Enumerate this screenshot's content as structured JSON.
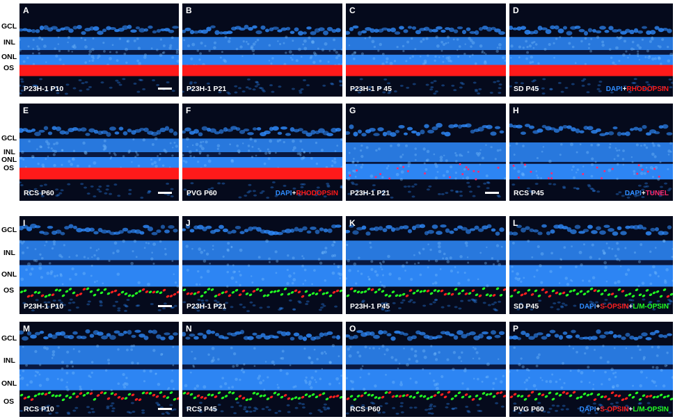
{
  "layer_labels": {
    "top": [
      "GCL",
      "INL",
      "ONL",
      "OS"
    ],
    "row2": [
      "GCL",
      "INL",
      "ONL",
      "OS"
    ],
    "bottom1": [
      "GCL",
      "INL",
      "ONL",
      "OS"
    ],
    "bottom2": [
      "GCL",
      "INL",
      "ONL",
      "OS"
    ]
  },
  "panels": [
    {
      "letter": "A",
      "caption": "P23H-1 P10",
      "type": "rho",
      "scale": true
    },
    {
      "letter": "B",
      "caption": "P23H-1 P21",
      "type": "rho"
    },
    {
      "letter": "C",
      "caption": "P23H-1 P 45",
      "type": "rho"
    },
    {
      "letter": "D",
      "caption": "SD P45",
      "type": "rho",
      "legend": [
        "DAPI",
        "+",
        "RHODOPSIN"
      ]
    },
    {
      "letter": "E",
      "caption": "RCS P60",
      "type": "rho",
      "scale": true
    },
    {
      "letter": "F",
      "caption": "PVG P60",
      "type": "rho",
      "legend": [
        "DAPI",
        "+",
        "RHODOPSIN"
      ]
    },
    {
      "letter": "G",
      "caption": "P23H-1 P21",
      "type": "tunel",
      "scale": true
    },
    {
      "letter": "H",
      "caption": "RCS P45",
      "type": "tunel",
      "legend": [
        "DAPI",
        "+",
        "TUNEL"
      ]
    },
    {
      "letter": "I",
      "caption": "P23H-1 P10",
      "type": "opsin",
      "scale": true
    },
    {
      "letter": "J",
      "caption": "P23H-1 P21",
      "type": "opsin"
    },
    {
      "letter": "K",
      "caption": "P23H-1 P45",
      "type": "opsin"
    },
    {
      "letter": "L",
      "caption": "SD P45",
      "type": "opsin",
      "legend": [
        "DAPI",
        "+",
        "S-OPSIN",
        "+",
        "L/M-OPSIN"
      ]
    },
    {
      "letter": "M",
      "caption": "RCS P10",
      "type": "opsin",
      "scale": true
    },
    {
      "letter": "N",
      "caption": "RCS P45",
      "type": "opsin"
    },
    {
      "letter": "O",
      "caption": "RCS P60",
      "type": "opsin"
    },
    {
      "letter": "P",
      "caption": "PVG P60",
      "type": "opsin",
      "legend": [
        "DAPI",
        "+",
        "S-OPSIN",
        "+",
        "L/M-OPSIN"
      ]
    }
  ],
  "colors": {
    "dapi": "#2f8cff",
    "rhodopsin": "#ff1a1a",
    "tunel": "#ff2a6e",
    "s_opsin": "#ff2020",
    "lm_opsin": "#22ff22",
    "plus": "#ffffff",
    "background": "#050a1c"
  }
}
